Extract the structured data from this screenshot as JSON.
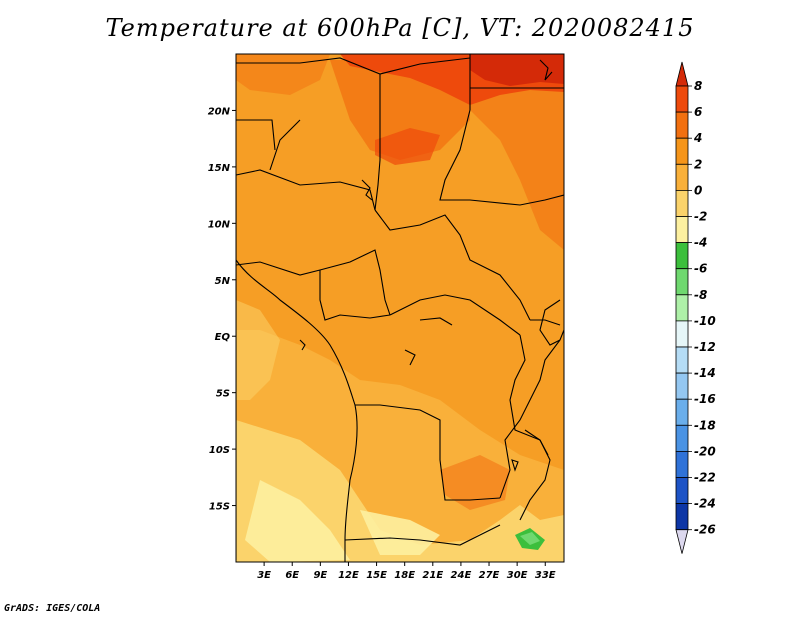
{
  "title": "Temperature at 600hPa [C], VT: 2020082415",
  "footer": "GrADS: IGES/COLA",
  "map": {
    "lon_range": [
      0,
      35
    ],
    "lat_range": [
      -20,
      25
    ],
    "lat_ticks": [
      {
        "value": 20,
        "label": "20N"
      },
      {
        "value": 15,
        "label": "15N"
      },
      {
        "value": 10,
        "label": "10N"
      },
      {
        "value": 5,
        "label": "5N"
      },
      {
        "value": 0,
        "label": "EQ"
      },
      {
        "value": -5,
        "label": "5S"
      },
      {
        "value": -10,
        "label": "10S"
      },
      {
        "value": -15,
        "label": "15S"
      }
    ],
    "lon_ticks": [
      {
        "value": 3,
        "label": "3E"
      },
      {
        "value": 6,
        "label": "6E"
      },
      {
        "value": 9,
        "label": "9E"
      },
      {
        "value": 12,
        "label": "12E"
      },
      {
        "value": 15,
        "label": "15E"
      },
      {
        "value": 18,
        "label": "18E"
      },
      {
        "value": 21,
        "label": "21E"
      },
      {
        "value": 24,
        "label": "24E"
      },
      {
        "value": 27,
        "label": "27E"
      },
      {
        "value": 30,
        "label": "30E"
      },
      {
        "value": 33,
        "label": "33E"
      }
    ]
  },
  "colorbar": {
    "labels": [
      "8",
      "6",
      "4",
      "2",
      "0",
      "-2",
      "-4",
      "-6",
      "-8",
      "-10",
      "-12",
      "-14",
      "-16",
      "-18",
      "-20",
      "-22",
      "-24",
      "-26"
    ],
    "colors": [
      "#d42a08",
      "#ee4a0c",
      "#f27010",
      "#f5951a",
      "#f9b03a",
      "#fbd36b",
      "#fdf0a0",
      "#3cbf3c",
      "#6fd86f",
      "#aef0a8",
      "#e6f6f8",
      "#b5dcf5",
      "#94c7f1",
      "#6aaeeb",
      "#4a93e4",
      "#2f72d8",
      "#1d53c6",
      "#0d36a6",
      "#0a1c72",
      "#dcd8ee"
    ]
  }
}
